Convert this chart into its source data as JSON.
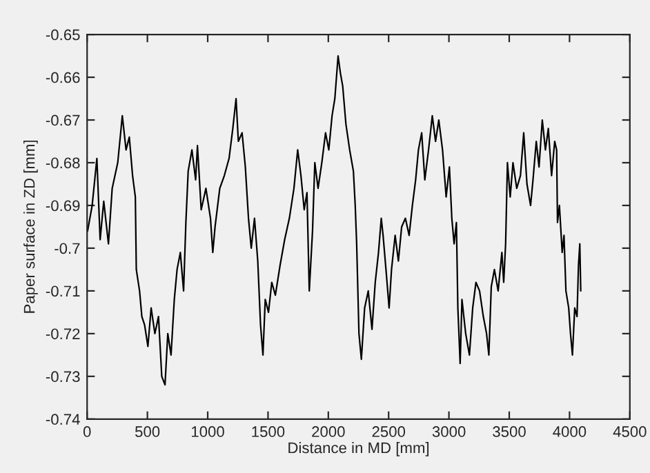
{
  "chart_data": {
    "type": "line",
    "xlabel": "Distance in MD [mm]",
    "ylabel": "Paper surface in ZD [mm]",
    "xlim": [
      0,
      4500
    ],
    "xticks": [
      0,
      500,
      1000,
      1500,
      2000,
      2500,
      3000,
      3500,
      4000,
      4500
    ],
    "ylim": [
      -0.74,
      -0.65
    ],
    "yticks": [
      -0.74,
      -0.73,
      -0.72,
      -0.71,
      -0.7,
      -0.69,
      -0.68,
      -0.67,
      -0.66,
      -0.65
    ],
    "grid": false,
    "legend": false,
    "marker": "none",
    "line_style": "solid",
    "series": [
      {
        "color": "#000000",
        "x": [
          4,
          42,
          81,
          108,
          138,
          177,
          208,
          254,
          292,
          323,
          350,
          377,
          400,
          408,
          435,
          454,
          477,
          504,
          531,
          562,
          592,
          619,
          646,
          669,
          696,
          723,
          746,
          773,
          800,
          819,
          838,
          869,
          900,
          915,
          946,
          985,
          1023,
          1042,
          1061,
          1100,
          1138,
          1177,
          1208,
          1235,
          1254,
          1285,
          1312,
          1338,
          1361,
          1388,
          1415,
          1438,
          1458,
          1477,
          1504,
          1531,
          1561,
          1600,
          1638,
          1677,
          1715,
          1746,
          1773,
          1800,
          1823,
          1842,
          1869,
          1888,
          1915,
          1946,
          1977,
          2004,
          2031,
          2054,
          2081,
          2100,
          2119,
          2146,
          2177,
          2208,
          2223,
          2235,
          2254,
          2274,
          2301,
          2331,
          2362,
          2389,
          2416,
          2439,
          2454,
          2478,
          2504,
          2524,
          2554,
          2581,
          2608,
          2639,
          2670,
          2697,
          2724,
          2747,
          2774,
          2800,
          2831,
          2862,
          2889,
          2916,
          2947,
          2977,
          3004,
          3024,
          3043,
          3062,
          3074,
          3093,
          3108,
          3139,
          3170,
          3197,
          3224,
          3254,
          3285,
          3312,
          3331,
          3351,
          3377,
          3408,
          3439,
          3454,
          3470,
          3485,
          3508,
          3531,
          3562,
          3593,
          3620,
          3647,
          3677,
          3697,
          3724,
          3747,
          3774,
          3800,
          3824,
          3851,
          3877,
          3893,
          3900,
          3916,
          3939,
          3954,
          3970,
          3993,
          4008,
          4024,
          4043,
          4062,
          4074,
          4085,
          4093
        ],
        "values": [
          -0.696,
          -0.69,
          -0.679,
          -0.698,
          -0.689,
          -0.699,
          -0.686,
          -0.68,
          -0.669,
          -0.677,
          -0.674,
          -0.683,
          -0.688,
          -0.705,
          -0.71,
          -0.716,
          -0.718,
          -0.723,
          -0.714,
          -0.72,
          -0.716,
          -0.73,
          -0.732,
          -0.72,
          -0.725,
          -0.712,
          -0.705,
          -0.701,
          -0.71,
          -0.694,
          -0.682,
          -0.677,
          -0.684,
          -0.676,
          -0.691,
          -0.686,
          -0.693,
          -0.701,
          -0.695,
          -0.686,
          -0.683,
          -0.679,
          -0.672,
          -0.665,
          -0.675,
          -0.673,
          -0.681,
          -0.693,
          -0.7,
          -0.693,
          -0.703,
          -0.718,
          -0.725,
          -0.712,
          -0.715,
          -0.708,
          -0.711,
          -0.704,
          -0.698,
          -0.693,
          -0.686,
          -0.677,
          -0.683,
          -0.691,
          -0.687,
          -0.71,
          -0.696,
          -0.68,
          -0.686,
          -0.68,
          -0.673,
          -0.677,
          -0.669,
          -0.665,
          -0.655,
          -0.659,
          -0.662,
          -0.671,
          -0.677,
          -0.682,
          -0.69,
          -0.699,
          -0.72,
          -0.726,
          -0.714,
          -0.71,
          -0.719,
          -0.708,
          -0.701,
          -0.693,
          -0.697,
          -0.705,
          -0.714,
          -0.705,
          -0.697,
          -0.703,
          -0.695,
          -0.693,
          -0.697,
          -0.69,
          -0.684,
          -0.677,
          -0.673,
          -0.684,
          -0.677,
          -0.669,
          -0.675,
          -0.67,
          -0.677,
          -0.688,
          -0.681,
          -0.693,
          -0.699,
          -0.694,
          -0.714,
          -0.727,
          -0.712,
          -0.72,
          -0.725,
          -0.714,
          -0.708,
          -0.71,
          -0.716,
          -0.72,
          -0.725,
          -0.709,
          -0.705,
          -0.71,
          -0.701,
          -0.708,
          -0.699,
          -0.68,
          -0.688,
          -0.68,
          -0.686,
          -0.683,
          -0.673,
          -0.685,
          -0.69,
          -0.684,
          -0.675,
          -0.681,
          -0.67,
          -0.677,
          -0.672,
          -0.683,
          -0.675,
          -0.677,
          -0.694,
          -0.69,
          -0.701,
          -0.697,
          -0.71,
          -0.714,
          -0.72,
          -0.725,
          -0.714,
          -0.716,
          -0.704,
          -0.699,
          -0.71
        ]
      }
    ]
  }
}
